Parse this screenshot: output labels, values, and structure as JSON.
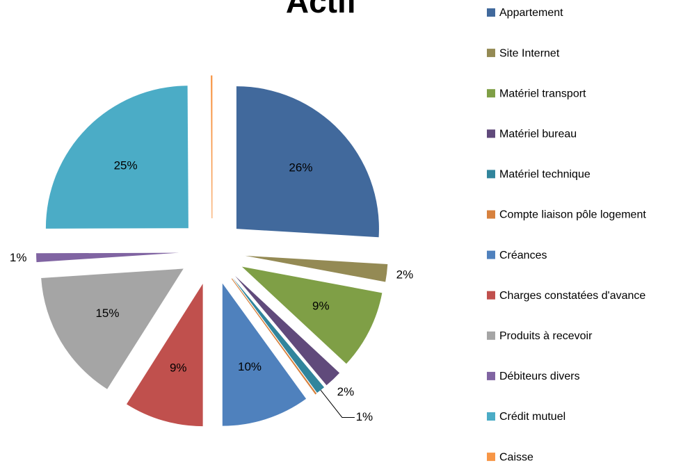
{
  "chart_data": {
    "type": "pie",
    "title": "Actif",
    "categories": [
      "Appartement",
      "Site Internet",
      "Matériel transport",
      "Matériel bureau",
      "Matériel technique",
      "Compte liaison pôle logement",
      "Créances",
      "Charges constatées d'avance",
      "Produits à recevoir",
      "Débiteurs divers",
      "Crédit mutuel",
      "Caisse"
    ],
    "values": [
      26,
      2,
      9,
      2,
      1,
      0.1,
      10,
      9,
      15,
      1,
      25,
      0.1
    ],
    "value_labels": [
      "26%",
      "2%",
      "9%",
      "2%",
      "1%",
      null,
      "10%",
      "9%",
      "15%",
      "1%",
      "25%",
      null
    ],
    "colors": [
      "#41699c",
      "#948a54",
      "#7f9f46",
      "#604a7b",
      "#31859c",
      "#d7813e",
      "#4f81bd",
      "#c0504d",
      "#a5a5a5",
      "#8064a2",
      "#4bacc6",
      "#f79646"
    ],
    "legend": "right"
  }
}
